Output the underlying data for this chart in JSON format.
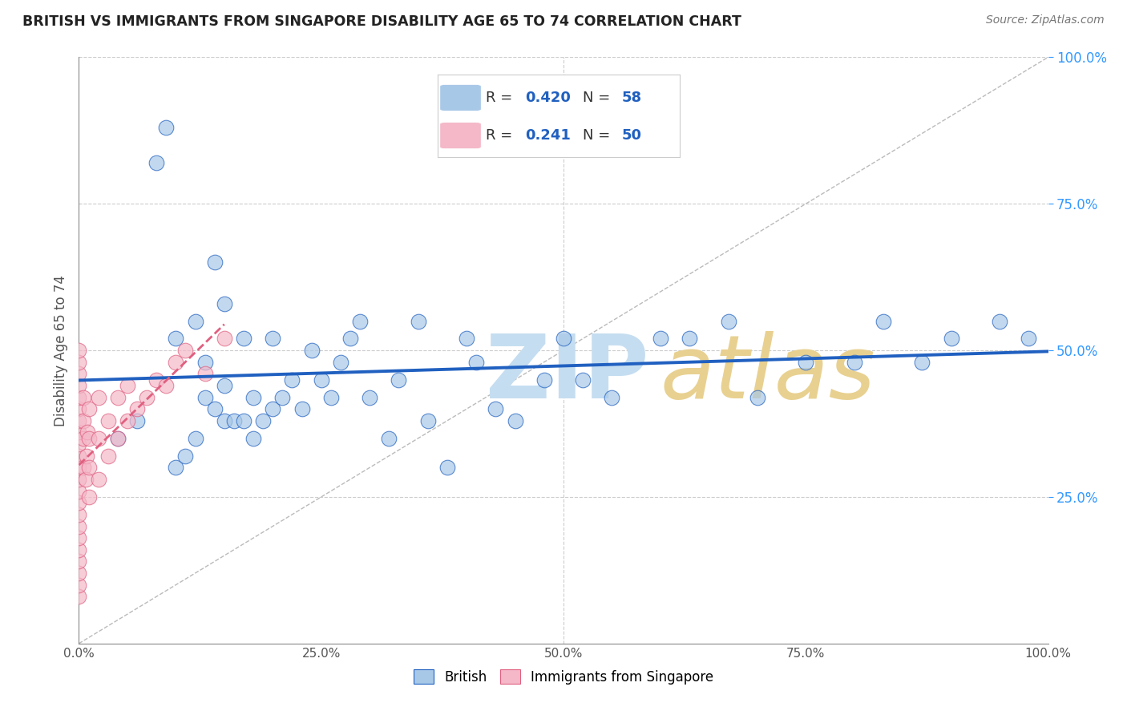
{
  "title": "BRITISH VS IMMIGRANTS FROM SINGAPORE DISABILITY AGE 65 TO 74 CORRELATION CHART",
  "source": "Source: ZipAtlas.com",
  "ylabel": "Disability Age 65 to 74",
  "british_R": 0.42,
  "british_N": 58,
  "singapore_R": 0.241,
  "singapore_N": 50,
  "british_color": "#a8c8e8",
  "singapore_color": "#f4b8c8",
  "british_line_color": "#2060c0",
  "singapore_line_color": "#e06080",
  "grid_color": "#cccccc",
  "axis_tick_color": "#3399ff",
  "axis_label_color": "#555555",
  "title_color": "#222222",
  "legend_value_color": "#2060c0",
  "xlim": [
    0.0,
    1.0
  ],
  "ylim": [
    0.0,
    1.0
  ],
  "x_ticks": [
    0.0,
    0.25,
    0.5,
    0.75,
    1.0
  ],
  "x_tick_labels": [
    "0.0%",
    "25.0%",
    "50.0%",
    "75.0%",
    "100.0%"
  ],
  "y_ticks": [
    0.25,
    0.5,
    0.75,
    1.0
  ],
  "y_tick_labels": [
    "25.0%",
    "50.0%",
    "75.0%",
    "100.0%"
  ],
  "british_x": [
    0.04,
    0.06,
    0.08,
    0.09,
    0.1,
    0.1,
    0.11,
    0.12,
    0.12,
    0.13,
    0.13,
    0.14,
    0.14,
    0.15,
    0.15,
    0.15,
    0.16,
    0.17,
    0.17,
    0.18,
    0.18,
    0.19,
    0.2,
    0.2,
    0.21,
    0.22,
    0.23,
    0.24,
    0.25,
    0.26,
    0.27,
    0.28,
    0.29,
    0.3,
    0.32,
    0.33,
    0.35,
    0.36,
    0.38,
    0.4,
    0.41,
    0.43,
    0.45,
    0.48,
    0.5,
    0.52,
    0.55,
    0.6,
    0.63,
    0.67,
    0.7,
    0.75,
    0.8,
    0.83,
    0.87,
    0.9,
    0.95,
    0.98
  ],
  "british_y": [
    0.35,
    0.38,
    0.82,
    0.88,
    0.52,
    0.3,
    0.32,
    0.35,
    0.55,
    0.42,
    0.48,
    0.4,
    0.65,
    0.38,
    0.44,
    0.58,
    0.38,
    0.38,
    0.52,
    0.35,
    0.42,
    0.38,
    0.4,
    0.52,
    0.42,
    0.45,
    0.4,
    0.5,
    0.45,
    0.42,
    0.48,
    0.52,
    0.55,
    0.42,
    0.35,
    0.45,
    0.55,
    0.38,
    0.3,
    0.52,
    0.48,
    0.4,
    0.38,
    0.45,
    0.52,
    0.45,
    0.42,
    0.52,
    0.52,
    0.55,
    0.42,
    0.48,
    0.48,
    0.55,
    0.48,
    0.52,
    0.55,
    0.52
  ],
  "singapore_x": [
    0.0,
    0.0,
    0.0,
    0.0,
    0.0,
    0.0,
    0.0,
    0.0,
    0.0,
    0.0,
    0.0,
    0.0,
    0.0,
    0.0,
    0.0,
    0.0,
    0.0,
    0.0,
    0.0,
    0.0,
    0.0,
    0.0,
    0.005,
    0.005,
    0.005,
    0.005,
    0.007,
    0.008,
    0.009,
    0.01,
    0.01,
    0.01,
    0.01,
    0.02,
    0.02,
    0.02,
    0.03,
    0.03,
    0.04,
    0.04,
    0.05,
    0.05,
    0.06,
    0.07,
    0.08,
    0.09,
    0.1,
    0.11,
    0.13,
    0.15
  ],
  "singapore_y": [
    0.08,
    0.1,
    0.12,
    0.14,
    0.16,
    0.18,
    0.2,
    0.22,
    0.24,
    0.26,
    0.28,
    0.3,
    0.32,
    0.34,
    0.36,
    0.38,
    0.4,
    0.42,
    0.44,
    0.46,
    0.48,
    0.5,
    0.3,
    0.35,
    0.38,
    0.42,
    0.28,
    0.32,
    0.36,
    0.25,
    0.3,
    0.35,
    0.4,
    0.28,
    0.35,
    0.42,
    0.32,
    0.38,
    0.35,
    0.42,
    0.38,
    0.44,
    0.4,
    0.42,
    0.45,
    0.44,
    0.48,
    0.5,
    0.46,
    0.52
  ],
  "figsize": [
    14.06,
    8.92
  ],
  "dpi": 100
}
